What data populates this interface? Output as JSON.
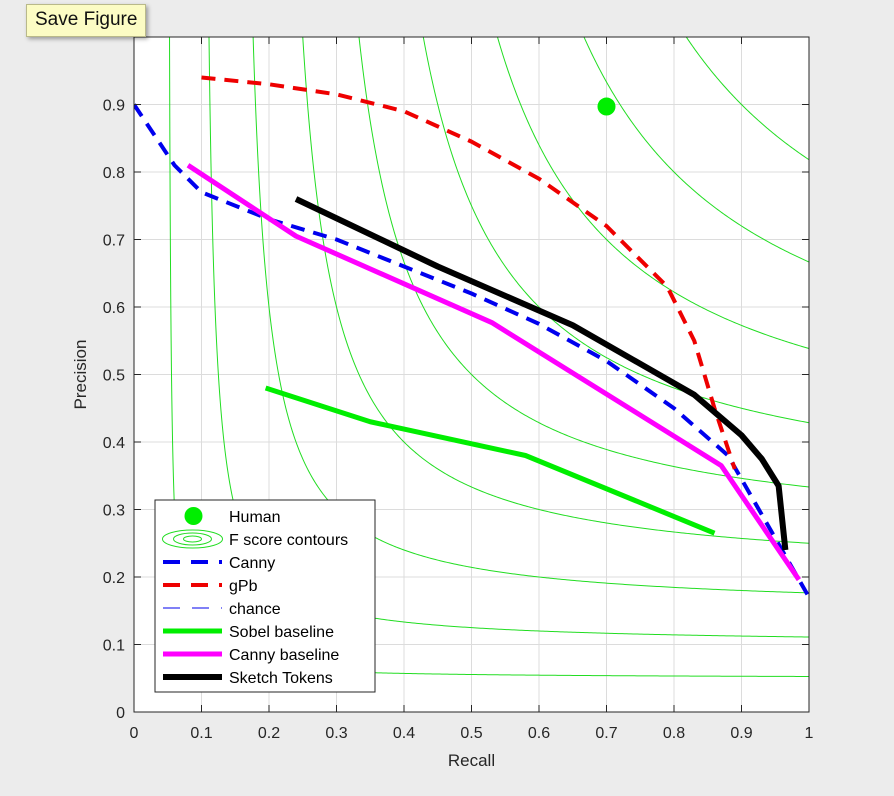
{
  "toolbar": {
    "save_figure_label": "Save Figure"
  },
  "chart_data": {
    "type": "line",
    "xlabel": "Recall",
    "ylabel": "Precision",
    "xlim": [
      0,
      1
    ],
    "ylim": [
      0,
      1
    ],
    "xticks": [
      "0",
      "0.1",
      "0.2",
      "0.3",
      "0.4",
      "0.5",
      "0.6",
      "0.7",
      "0.8",
      "0.9",
      "1"
    ],
    "yticks": [
      "0",
      "0.1",
      "0.2",
      "0.3",
      "0.4",
      "0.5",
      "0.6",
      "0.7",
      "0.8",
      "0.9"
    ],
    "grid": true,
    "legend_position": "bottom-left",
    "f_score_contour_levels": [
      0.1,
      0.2,
      0.3,
      0.4,
      0.5,
      0.6,
      0.7,
      0.8,
      0.9
    ],
    "human": {
      "name": "Human",
      "x": 0.7,
      "y": 0.897,
      "color": "#00ee00"
    },
    "series": [
      {
        "name": "Canny",
        "color": "#0000ee",
        "dash": "dashed",
        "width": 4,
        "x": [
          0.0,
          0.06,
          0.1,
          0.2,
          0.3,
          0.4,
          0.5,
          0.6,
          0.7,
          0.8,
          0.88,
          0.92,
          0.96,
          1.0
        ],
        "y": [
          0.9,
          0.81,
          0.77,
          0.73,
          0.7,
          0.66,
          0.62,
          0.575,
          0.52,
          0.45,
          0.38,
          0.31,
          0.24,
          0.17
        ]
      },
      {
        "name": "gPb",
        "color": "#ee0000",
        "dash": "dashed",
        "width": 4,
        "x": [
          0.1,
          0.2,
          0.3,
          0.4,
          0.5,
          0.6,
          0.7,
          0.79,
          0.83,
          0.86,
          0.89
        ],
        "y": [
          0.94,
          0.93,
          0.915,
          0.89,
          0.845,
          0.79,
          0.72,
          0.63,
          0.55,
          0.45,
          0.36
        ]
      },
      {
        "name": "chance",
        "color": "#0000ee",
        "dash": "thin-dashed",
        "width": 1,
        "x": [],
        "y": []
      },
      {
        "name": "Sobel baseline",
        "color": "#00ee00",
        "dash": "solid",
        "width": 5,
        "x": [
          0.195,
          0.35,
          0.58,
          0.86
        ],
        "y": [
          0.48,
          0.43,
          0.38,
          0.265
        ]
      },
      {
        "name": "Canny baseline",
        "color": "#ff00ff",
        "dash": "solid",
        "width": 5,
        "x": [
          0.08,
          0.24,
          0.53,
          0.87,
          0.985
        ],
        "y": [
          0.81,
          0.705,
          0.577,
          0.365,
          0.196
        ]
      },
      {
        "name": "Sketch Tokens",
        "color": "#000000",
        "dash": "solid",
        "width": 6,
        "x": [
          0.24,
          0.45,
          0.65,
          0.83,
          0.9,
          0.93,
          0.955,
          0.965
        ],
        "y": [
          0.76,
          0.66,
          0.573,
          0.47,
          0.41,
          0.375,
          0.335,
          0.24
        ]
      }
    ],
    "legend": [
      "Human",
      "F score contours",
      "Canny",
      "gPb",
      "chance",
      "Sobel baseline",
      "Canny baseline",
      "Sketch Tokens"
    ]
  }
}
